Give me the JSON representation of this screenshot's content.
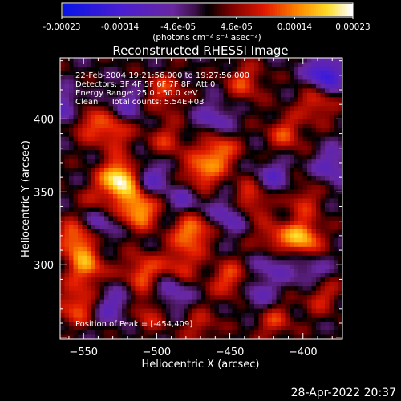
{
  "chart_data": {
    "type": "heatmap",
    "title": "Reconstructed RHESSI Image",
    "xlabel": "Heliocentric X (arcsec)",
    "ylabel": "Heliocentric Y (arcsec)",
    "xlim": [
      -566,
      -373
    ],
    "ylim": [
      249,
      442
    ],
    "x_ticks": [
      -550,
      -500,
      -450,
      -400
    ],
    "y_ticks": [
      300,
      350,
      400
    ],
    "colorbar": {
      "colormap": "blue-purple-red-yellow-white",
      "range": [
        -0.00023,
        0.00023
      ],
      "tick_labels": [
        "-0.00023",
        "-0.00014",
        "-4.6e-05",
        "4.6e-05",
        "0.00014",
        "0.00023"
      ],
      "unit_label": "(photons cm⁻² s⁻¹ asec⁻²)"
    },
    "annotations": {
      "time_range": "22-Feb-2004 19:21:56.000 to 19:27:56.000",
      "detectors": "Detectors: 3F 4F 5F 6F 7F 8F, Att 0",
      "energy_range": "Energy Range: 25.0 - 50.0 keV",
      "clean_counts": "Clean     Total counts: 5.54E+03",
      "peak": "Position of Peak = [-454,409]"
    },
    "blobs": [
      {
        "x": -525,
        "y": 359,
        "v": 0.00023
      },
      {
        "x": -512,
        "y": 338,
        "v": 0.00018
      },
      {
        "x": -476,
        "y": 323,
        "v": 0.00016
      },
      {
        "x": -400,
        "y": 318,
        "v": 0.00017
      },
      {
        "x": -420,
        "y": 315,
        "v": 0.00014
      },
      {
        "x": -458,
        "y": 378,
        "v": 0.00014
      },
      {
        "x": -470,
        "y": 362,
        "v": 0.00013
      },
      {
        "x": -552,
        "y": 400,
        "v": 0.00015
      },
      {
        "x": -530,
        "y": 392,
        "v": 0.00012
      },
      {
        "x": -555,
        "y": 318,
        "v": 0.00015
      },
      {
        "x": -548,
        "y": 298,
        "v": 0.00014
      },
      {
        "x": -555,
        "y": 272,
        "v": 0.00012
      },
      {
        "x": -510,
        "y": 295,
        "v": 0.00012
      },
      {
        "x": -484,
        "y": 300,
        "v": 0.0001
      },
      {
        "x": -450,
        "y": 290,
        "v": 0.00011
      },
      {
        "x": -436,
        "y": 345,
        "v": 0.00012
      },
      {
        "x": -390,
        "y": 412,
        "v": 0.00011
      },
      {
        "x": -412,
        "y": 390,
        "v": 0.0001
      },
      {
        "x": -495,
        "y": 418,
        "v": 0.0001
      },
      {
        "x": -440,
        "y": 425,
        "v": 0.0001
      },
      {
        "x": -505,
        "y": 268,
        "v": 9e-05
      },
      {
        "x": -420,
        "y": 262,
        "v": 9e-05
      },
      {
        "x": -388,
        "y": 280,
        "v": 9e-05
      },
      {
        "x": -493,
        "y": 385,
        "v": 8e-05
      },
      {
        "x": -540,
        "y": 343,
        "v": 8e-05
      },
      {
        "x": -400,
        "y": 345,
        "v": 8e-05
      },
      {
        "x": -470,
        "y": 258,
        "v": 7e-05
      },
      {
        "x": -385,
        "y": 430,
        "v": -0.00018
      },
      {
        "x": -560,
        "y": 405,
        "v": -0.00016
      },
      {
        "x": -420,
        "y": 305,
        "v": -0.00012
      },
      {
        "x": -505,
        "y": 360,
        "v": -0.0001
      },
      {
        "x": -450,
        "y": 335,
        "v": -0.0001
      },
      {
        "x": -540,
        "y": 330,
        "v": -0.0001
      },
      {
        "x": -380,
        "y": 368,
        "v": -0.0001
      },
      {
        "x": -490,
        "y": 280,
        "v": -0.0001
      },
      {
        "x": -460,
        "y": 400,
        "v": -9e-05
      },
      {
        "x": -530,
        "y": 272,
        "v": -9e-05
      },
      {
        "x": -420,
        "y": 360,
        "v": -9e-05
      },
      {
        "x": -395,
        "y": 295,
        "v": -9e-05
      },
      {
        "x": -520,
        "y": 410,
        "v": -8e-05
      },
      {
        "x": -430,
        "y": 280,
        "v": -8e-05
      },
      {
        "x": -480,
        "y": 345,
        "v": -8e-05
      }
    ]
  },
  "footer": {
    "timestamp": "28-Apr-2022 20:37"
  }
}
